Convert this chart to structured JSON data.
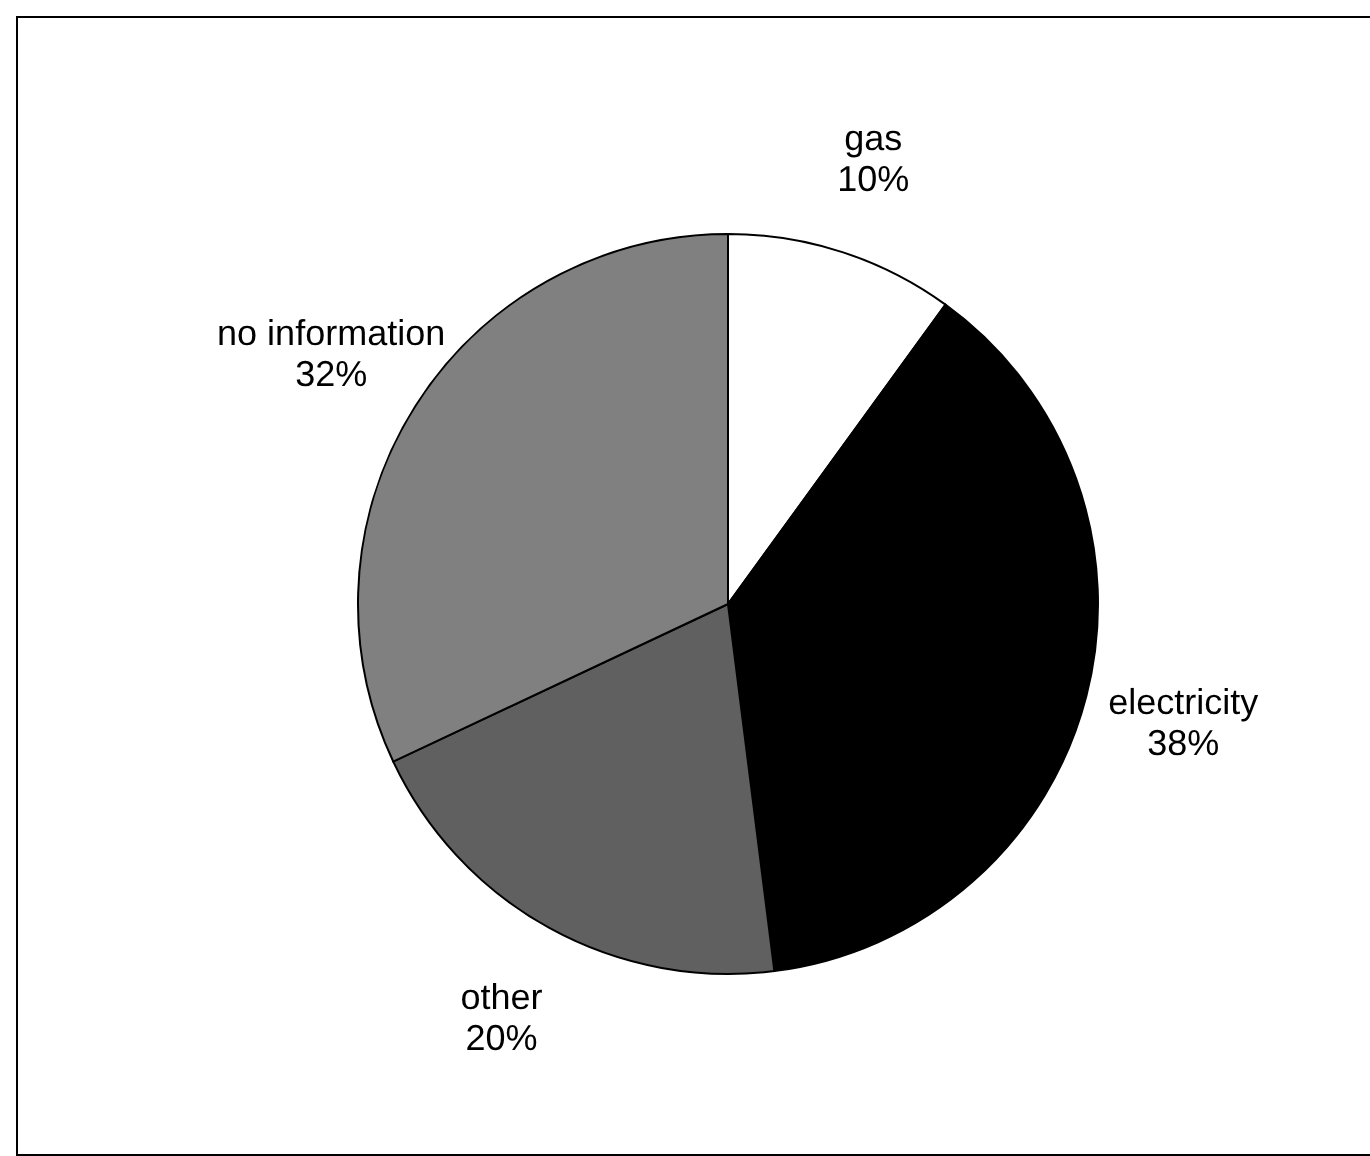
{
  "chart_data": {
    "type": "pie",
    "categories": [
      "gas",
      "electricity",
      "other",
      "no information"
    ],
    "values": [
      10,
      38,
      20,
      32
    ],
    "value_labels": [
      "10%",
      "38%",
      "20%",
      "32%"
    ],
    "colors": [
      "#ffffff",
      "#000000",
      "#606060",
      "#808080"
    ],
    "legend": false
  }
}
